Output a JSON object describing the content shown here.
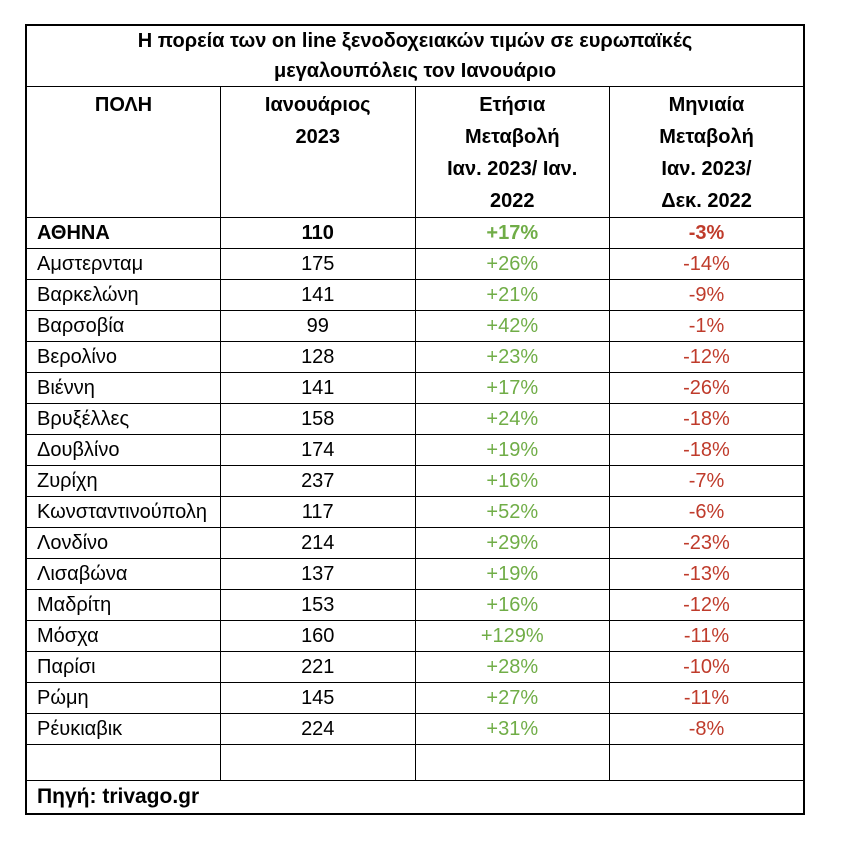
{
  "page": {
    "background": "#ffffff"
  },
  "chart_data": {
    "type": "table",
    "title": "Η πορεία των on line ξενοδοχειακών τιμών σε ευρωπαϊκές μεγαλουπόλεις τον Ιανουάριο",
    "columns": [
      {
        "label": "ΠΟΛΗ",
        "lines": [
          "ΠΟΛΗ"
        ]
      },
      {
        "label": "Ιανουάριος 2023",
        "lines": [
          "Ιανουάριος",
          "2023"
        ]
      },
      {
        "label": "Ετήσια Μεταβολή Ιαν. 2023/ Ιαν. 2022",
        "lines": [
          "Ετήσια",
          "Μεταβολή",
          "Ιαν. 2023/ Ιαν.",
          "2022"
        ]
      },
      {
        "label": "Μηνιαία Μεταβολή Ιαν. 2023/ Δεκ. 2022",
        "lines": [
          "Μηνιαία",
          "Μεταβολή",
          "Ιαν. 2023/",
          "Δεκ. 2022"
        ]
      }
    ],
    "rows": [
      {
        "city": "ΑΘΗΝΑ",
        "price_jan_2023": 110,
        "yearly_change": "+17%",
        "monthly_change": "-3%",
        "emphasis": true
      },
      {
        "city": "Αμστερνταμ",
        "price_jan_2023": 175,
        "yearly_change": "+26%",
        "monthly_change": "-14%",
        "emphasis": false
      },
      {
        "city": "Βαρκελώνη",
        "price_jan_2023": 141,
        "yearly_change": "+21%",
        "monthly_change": "-9%",
        "emphasis": false
      },
      {
        "city": "Βαρσοβία",
        "price_jan_2023": 99,
        "yearly_change": "+42%",
        "monthly_change": "-1%",
        "emphasis": false
      },
      {
        "city": "Βερολίνο",
        "price_jan_2023": 128,
        "yearly_change": "+23%",
        "monthly_change": "-12%",
        "emphasis": false
      },
      {
        "city": "Βιέννη",
        "price_jan_2023": 141,
        "yearly_change": "+17%",
        "monthly_change": "-26%",
        "emphasis": false
      },
      {
        "city": "Βρυξέλλες",
        "price_jan_2023": 158,
        "yearly_change": "+24%",
        "monthly_change": "-18%",
        "emphasis": false
      },
      {
        "city": "Δουβλίνο",
        "price_jan_2023": 174,
        "yearly_change": "+19%",
        "monthly_change": "-18%",
        "emphasis": false
      },
      {
        "city": "Ζυρίχη",
        "price_jan_2023": 237,
        "yearly_change": "+16%",
        "monthly_change": "-7%",
        "emphasis": false
      },
      {
        "city": "Κωνσταντινούπολη",
        "price_jan_2023": 117,
        "yearly_change": "+52%",
        "monthly_change": "-6%",
        "emphasis": false
      },
      {
        "city": "Λονδίνο",
        "price_jan_2023": 214,
        "yearly_change": "+29%",
        "monthly_change": "-23%",
        "emphasis": false
      },
      {
        "city": "Λισαβώνα",
        "price_jan_2023": 137,
        "yearly_change": "+19%",
        "monthly_change": "-13%",
        "emphasis": false
      },
      {
        "city": "Μαδρίτη",
        "price_jan_2023": 153,
        "yearly_change": "+16%",
        "monthly_change": "-12%",
        "emphasis": false
      },
      {
        "city": "Μόσχα",
        "price_jan_2023": 160,
        "yearly_change": "+129%",
        "monthly_change": "-11%",
        "emphasis": false
      },
      {
        "city": "Παρίσι",
        "price_jan_2023": 221,
        "yearly_change": "+28%",
        "monthly_change": "-10%",
        "emphasis": false
      },
      {
        "city": "Ρώμη",
        "price_jan_2023": 145,
        "yearly_change": "+27%",
        "monthly_change": "-11%",
        "emphasis": false
      },
      {
        "city": "Ρέυκιαβικ",
        "price_jan_2023": 224,
        "yearly_change": "+31%",
        "monthly_change": "-8%",
        "emphasis": false
      }
    ],
    "source": "Πηγή: trivago.gr",
    "value_colors": {
      "positive": "#70ad47",
      "negative": "#bf3b2b"
    },
    "layout": {
      "grid": "all-borders",
      "legend_position": "none",
      "header_align": "center",
      "city_align": "left",
      "values_align": "center"
    }
  }
}
